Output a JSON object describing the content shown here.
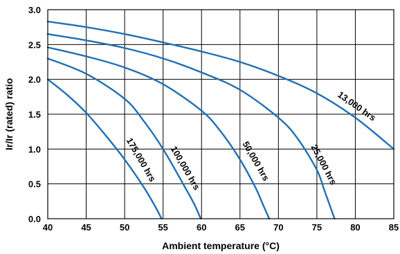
{
  "chart_data": {
    "type": "line",
    "title": "",
    "xlabel": "Ambient temperature (°C)",
    "ylabel": "Ir/Ir (rated) ratio",
    "xlim": [
      40,
      85
    ],
    "ylim": [
      0,
      3
    ],
    "x_ticks": [
      "40",
      "45",
      "50",
      "55",
      "60",
      "65",
      "70",
      "75",
      "80",
      "85"
    ],
    "y_ticks": [
      "0.0",
      "0.5",
      "1.0",
      "1.5",
      "2.0",
      "2.5",
      "3.0"
    ],
    "grid": true,
    "line_color": "#1f6fb4",
    "series": [
      {
        "name": "13,000 hrs",
        "x": [
          40,
          45,
          50,
          55,
          60,
          65,
          70,
          75,
          80,
          85
        ],
        "y": [
          2.83,
          2.75,
          2.65,
          2.53,
          2.4,
          2.25,
          2.05,
          1.8,
          1.45,
          1.0
        ]
      },
      {
        "name": "25,000 hrs",
        "x": [
          40,
          45,
          50,
          55,
          60,
          65,
          70,
          72.5,
          75,
          76,
          77.3
        ],
        "y": [
          2.65,
          2.56,
          2.45,
          2.3,
          2.1,
          1.85,
          1.45,
          1.15,
          0.7,
          0.4,
          0.0
        ]
      },
      {
        "name": "50,000 hrs",
        "x": [
          40,
          45,
          50,
          55,
          60,
          62.5,
          65,
          67,
          68,
          68.8
        ],
        "y": [
          2.46,
          2.33,
          2.17,
          1.93,
          1.55,
          1.25,
          0.85,
          0.45,
          0.2,
          0.0
        ]
      },
      {
        "name": "100,000 hrs",
        "x": [
          40,
          45,
          50,
          52.5,
          55,
          57.5,
          59,
          59.9
        ],
        "y": [
          2.3,
          2.08,
          1.72,
          1.4,
          1.0,
          0.52,
          0.22,
          0.0
        ]
      },
      {
        "name": "175,000 hrs",
        "x": [
          40,
          42.5,
          45,
          47.5,
          50,
          52.5,
          54,
          54.8
        ],
        "y": [
          2.0,
          1.78,
          1.52,
          1.2,
          0.85,
          0.45,
          0.17,
          0.0
        ]
      }
    ]
  }
}
